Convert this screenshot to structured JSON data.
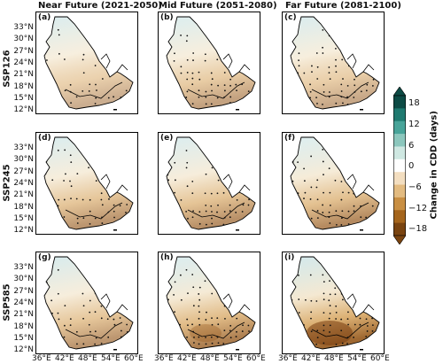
{
  "columns": [
    "Near Future (2021-2050)",
    "Mid Future (2051-2080)",
    "Far Future (2081-2100)"
  ],
  "rows": [
    "SSP126",
    "SSP245",
    "SSP585"
  ],
  "panels": [
    "(a)",
    "(b)",
    "(c)",
    "(d)",
    "(e)",
    "(f)",
    "(g)",
    "(h)",
    "(i)"
  ],
  "lat_ticks": [
    "33°N",
    "30°N",
    "27°N",
    "24°N",
    "21°N",
    "18°N",
    "15°N",
    "12°N"
  ],
  "lon_ticks": [
    "36°E",
    "42°E",
    "48°E",
    "54°E",
    "60°E"
  ],
  "colorbar": {
    "label": "Change in CDD (days)",
    "ticks": [
      "18",
      "12",
      "6",
      "0",
      "−6",
      "−12",
      "−18"
    ],
    "colors": [
      "#0d4b45",
      "#1f7a70",
      "#48a499",
      "#8cc7bd",
      "#cfe8e2",
      "#ffffff",
      "#f3dec0",
      "#e3bb80",
      "#c98f43",
      "#a5651c",
      "#7a4410"
    ]
  }
}
